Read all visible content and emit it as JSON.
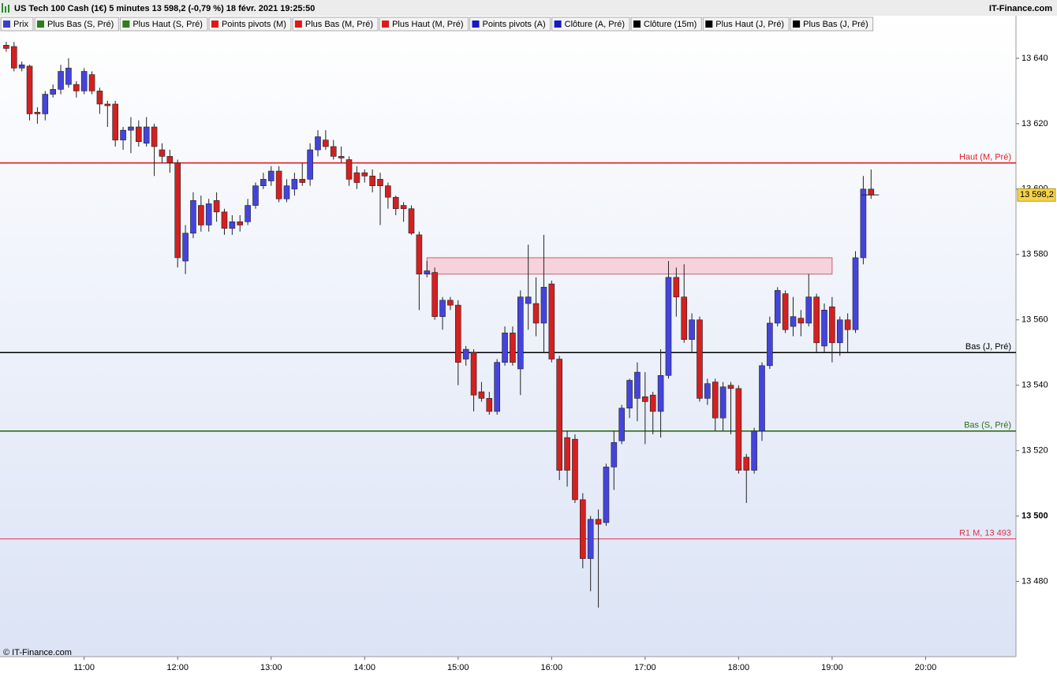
{
  "chart_data": {
    "type": "candlestick",
    "title": "US Tech 100 Cash (1€) 5 minutes 13 598,2 (-0,79 %) 18 févr. 2021 19:25:50",
    "brand": "IT-Finance.com",
    "copyright": "© IT-Finance.com",
    "legend": [
      {
        "name": "Prix",
        "color": "#3b3bd6"
      },
      {
        "name": "Plus Bas (S, Pré)",
        "color": "#2e7d1a"
      },
      {
        "name": "Plus Haut (S, Pré)",
        "color": "#2e7d1a"
      },
      {
        "name": "Points pivots (M)",
        "color": "#e01818"
      },
      {
        "name": "Plus Bas (M, Pré)",
        "color": "#e01818"
      },
      {
        "name": "Plus Haut (M, Pré)",
        "color": "#e01818"
      },
      {
        "name": "Points pivots (A)",
        "color": "#1818c8"
      },
      {
        "name": "Clôture (A, Pré)",
        "color": "#1818c8"
      },
      {
        "name": "Clôture (15m)",
        "color": "#000000"
      },
      {
        "name": "Plus Haut (J, Pré)",
        "color": "#000000"
      },
      {
        "name": "Plus Bas (J, Pré)",
        "color": "#000000"
      }
    ],
    "up_color": "#4444dd",
    "down_color": "#d42020",
    "x": [
      610,
      615,
      620,
      625,
      630,
      635,
      640,
      645,
      650,
      655,
      660,
      665,
      670,
      675,
      680,
      685,
      690,
      695,
      700,
      705,
      710,
      715,
      720,
      725,
      730,
      735,
      740,
      745,
      750,
      755,
      760,
      765,
      770,
      775,
      780,
      785,
      790,
      795,
      800,
      805,
      810,
      815,
      820,
      825,
      830,
      835,
      840,
      845,
      850,
      855,
      860,
      865,
      870,
      875,
      880,
      885,
      890,
      895,
      900,
      905,
      910,
      915,
      920,
      925,
      930,
      935,
      940,
      945,
      950,
      955,
      960,
      965,
      970,
      975,
      980,
      985,
      990,
      995,
      1000,
      1005,
      1010,
      1015,
      1020,
      1025,
      1030,
      1035,
      1040,
      1045,
      1050,
      1055,
      1060,
      1065,
      1070,
      1075,
      1080,
      1085,
      1090,
      1095,
      1100,
      1105,
      1110,
      1115,
      1120,
      1125,
      1130,
      1135,
      1140,
      1145,
      1150,
      1155,
      1160,
      1165
    ],
    "open": [
      13644,
      13643.6,
      13637,
      13637.6,
      13623.5,
      13623,
      13629,
      13630.5,
      13632,
      13632,
      13630,
      13635,
      13630,
      13626,
      13626,
      13615,
      13618,
      13619,
      13614,
      13619,
      13612,
      13610,
      13608,
      13578,
      13586.5,
      13595,
      13589,
      13596.5,
      13593,
      13588,
      13590,
      13590,
      13595,
      13601,
      13602.5,
      13605.5,
      13597,
      13600,
      13603,
      13603,
      13612,
      13615,
      13613,
      13610,
      13609,
      13605,
      13605,
      13604,
      13603,
      13601,
      13597.5,
      13595,
      13594,
      13586,
      13574,
      13574.5,
      13561,
      13566,
      13564.5,
      13548,
      13550,
      13538,
      13536,
      13532,
      13547,
      13556,
      13545,
      13565,
      13565,
      13559,
      13571,
      13548,
      13524,
      13523.5,
      13505,
      13487,
      13499,
      13498,
      13515,
      13523,
      13533,
      13536,
      13536.5,
      13537,
      13532,
      13543,
      13573,
      13567,
      13554,
      13560,
      13536,
      13541,
      13530,
      13540,
      13539,
      13518,
      13514,
      13526,
      13546,
      13559,
      13568,
      13558,
      13560.5,
      13559,
      13567,
      13552,
      13564,
      13553,
      13560,
      13557,
      13579,
      13600
    ],
    "high": [
      13645,
      13645,
      13639,
      13638,
      13625,
      13630,
      13632,
      13638,
      13640,
      13633,
      13637,
      13636,
      13631,
      13627,
      13627,
      13619,
      13622,
      13621,
      13622,
      13620,
      13614,
      13612,
      13609,
      13589,
      13599,
      13598,
      13597,
      13599,
      13594,
      13592,
      13592,
      13597,
      13602,
      13605,
      13607,
      13607,
      13603,
      13605,
      13608,
      13614,
      13618,
      13618,
      13615,
      13613,
      13610,
      13607,
      13606,
      13606,
      13605,
      13602,
      13598,
      13596,
      13595,
      13587,
      13578,
      13576,
      13567,
      13567,
      13566,
      13552,
      13551,
      13541,
      13538,
      13548,
      13558,
      13558,
      13569,
      13583,
      13573,
      13586,
      13572,
      13549,
      13526,
      13525,
      13507,
      13500,
      13502,
      13516,
      13526,
      13534,
      13542,
      13547,
      13544,
      13538,
      13551,
      13578,
      13576,
      13577,
      13562,
      13561,
      13542,
      13542,
      13541,
      13541,
      13540,
      13519,
      13527,
      13547,
      13561,
      13570,
      13569,
      13567,
      13563,
      13574,
      13568,
      13565,
      13567,
      13561,
      13562,
      13581,
      13604,
      13606
    ],
    "low": [
      13642,
      13636,
      13636,
      13621,
      13620,
      13621,
      13628,
      13629,
      13631,
      13628,
      13629,
      13629,
      13623,
      13619,
      13613,
      13612,
      13611,
      13613,
      13613,
      13604,
      13608,
      13605,
      13576,
      13574,
      13585,
      13587,
      13587,
      13590,
      13586,
      13586,
      13587,
      13589,
      13594,
      13600,
      13601,
      13596,
      13596,
      13598,
      13601,
      13601,
      13610,
      13612,
      13609,
      13608,
      13601,
      13600,
      13602,
      13599,
      13589,
      13594,
      13592,
      13590,
      13586,
      13563,
      13573,
      13560,
      13557,
      13563,
      13540,
      13546,
      13532,
      13535,
      13531,
      13531,
      13546,
      13546,
      13537,
      13557,
      13555,
      13550,
      13547,
      13511,
      13509,
      13504,
      13484,
      13477,
      13472,
      13497,
      13508,
      13522,
      13530,
      13529,
      13522,
      13525,
      13524,
      13542,
      13561,
      13553,
      13550,
      13535,
      13534,
      13526,
      13526,
      13525,
      13513,
      13504,
      13513,
      13523,
      13545,
      13558,
      13556,
      13555,
      13555,
      13558,
      13550,
      13550,
      13547,
      13549,
      13550,
      13556,
      13577,
      13597
    ],
    "close": [
      13643,
      13637,
      13638,
      13623,
      13623,
      13629,
      13630.5,
      13636,
      13637,
      13630,
      13636,
      13630,
      13626,
      13625.5,
      13615,
      13618,
      13619,
      13614.5,
      13619,
      13613,
      13610,
      13608,
      13579,
      13586.5,
      13596.5,
      13589,
      13595.5,
      13593,
      13588,
      13590,
      13589,
      13595,
      13601,
      13603,
      13605.5,
      13597,
      13601,
      13603,
      13602,
      13612,
      13616,
      13613,
      13610,
      13609.5,
      13603,
      13602,
      13604,
      13601,
      13601,
      13597.5,
      13594,
      13594,
      13586.5,
      13574,
      13575,
      13561,
      13566,
      13564.5,
      13547,
      13551,
      13537,
      13536,
      13532,
      13547,
      13556,
      13547,
      13567,
      13567,
      13559,
      13570,
      13548,
      13514,
      13514,
      13505,
      13487,
      13499,
      13497.5,
      13515,
      13522.5,
      13533,
      13541.5,
      13544,
      13535,
      13532,
      13543,
      13573,
      13567,
      13554,
      13560,
      13536,
      13540.5,
      13530,
      13539.5,
      13539,
      13514,
      13514,
      13526,
      13546,
      13559,
      13569,
      13557,
      13561,
      13559,
      13567,
      13553,
      13563,
      13553,
      13560,
      13557,
      13579,
      13600,
      13598.2
    ],
    "lines": [
      {
        "label": "Haut (M, Pré)",
        "value": 13608,
        "color": "#e02020"
      },
      {
        "label": "Bas (J, Pré)",
        "value": 13550,
        "color": "#000000"
      },
      {
        "label": "Bas (S, Pré)",
        "value": 13526,
        "color": "#2e6e1a"
      },
      {
        "label": "R1 M, 13 493",
        "value": 13493,
        "color": "#e0304a"
      }
    ],
    "zone": {
      "x": [
        880,
        1140
      ],
      "y": [
        13574,
        13579
      ],
      "color": "#f6d2dc"
    },
    "last_price": {
      "value": 13598.2,
      "label": "13 598,2"
    },
    "xlim": [
      606,
      1258
    ],
    "ylim": [
      13457,
      13653
    ],
    "xticks": [
      {
        "value": 660,
        "label": "11:00"
      },
      {
        "value": 720,
        "label": "12:00"
      },
      {
        "value": 780,
        "label": "13:00"
      },
      {
        "value": 840,
        "label": "14:00"
      },
      {
        "value": 900,
        "label": "15:00"
      },
      {
        "value": 960,
        "label": "16:00"
      },
      {
        "value": 1020,
        "label": "17:00"
      },
      {
        "value": 1080,
        "label": "18:00"
      },
      {
        "value": 1140,
        "label": "19:00"
      },
      {
        "value": 1200,
        "label": "20:00"
      }
    ],
    "yticks": [
      {
        "value": 13480,
        "label": "13 480"
      },
      {
        "value": 13500,
        "label": "13 500"
      },
      {
        "value": 13520,
        "label": "13 520"
      },
      {
        "value": 13540,
        "label": "13 540"
      },
      {
        "value": 13560,
        "label": "13 560"
      },
      {
        "value": 13580,
        "label": "13 580"
      },
      {
        "value": 13600,
        "label": "13 600"
      },
      {
        "value": 13620,
        "label": "13 620"
      },
      {
        "value": 13640,
        "label": "13 640"
      }
    ]
  }
}
